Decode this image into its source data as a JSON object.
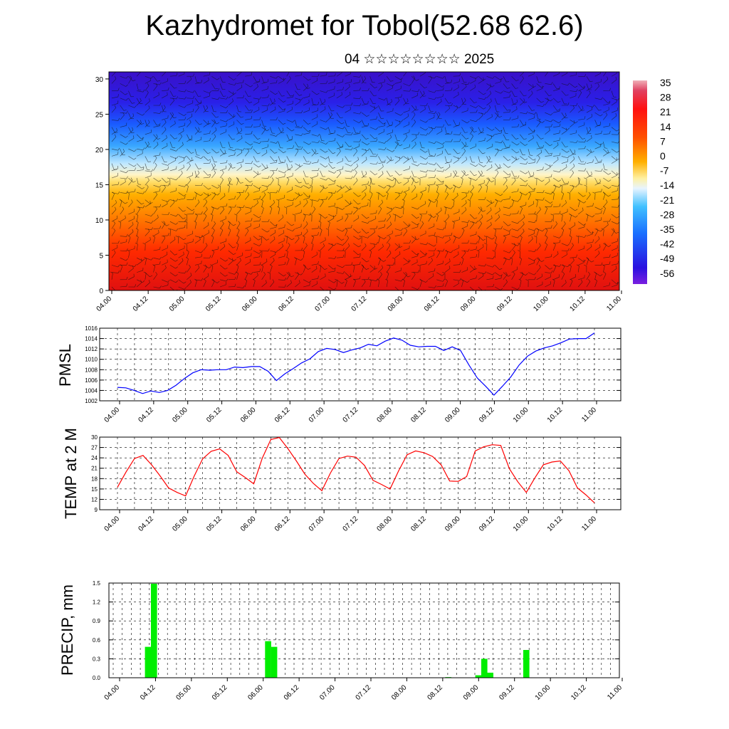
{
  "page": {
    "title": "Kazhydromet for Tobol(52.68 62.6)",
    "subtitle": "04 ☆☆☆☆☆☆☆☆ 2025"
  },
  "time_labels": [
    "04.00",
    "04.12",
    "05.00",
    "05.12",
    "06.00",
    "06.12",
    "07.00",
    "07.12",
    "08.00",
    "08.12",
    "09.00",
    "09.12",
    "10.00",
    "10.12",
    "11.00"
  ],
  "colors": {
    "pmsl_line": "#0000ff",
    "temp_line": "#ff0000",
    "precip_bar": "#00ee00"
  },
  "chart_data": [
    {
      "type": "heatmap",
      "name": "upper-air-section",
      "x_ticks": [
        "04.00",
        "04.12",
        "05.00",
        "05.12",
        "06.00",
        "06.12",
        "07.00",
        "07.12",
        "08.00",
        "08.12",
        "09.00",
        "09.12",
        "10.00",
        "10.12",
        "11.00"
      ],
      "y_ticks": [
        0,
        5,
        10,
        15,
        20,
        25,
        30
      ],
      "ylim": [
        0,
        31
      ],
      "colorbar_labels": [
        "35",
        "28",
        "21",
        "14",
        "7",
        "0",
        "-7",
        "-14",
        "-21",
        "-28",
        "-35",
        "-42",
        "-49",
        "-56"
      ],
      "overlay": "wind barbs"
    },
    {
      "type": "line",
      "name": "pmsl",
      "ylabel": "PMSL",
      "ylim": [
        1002,
        1016
      ],
      "y_ticks": [
        1002,
        1004,
        1006,
        1008,
        1010,
        1012,
        1014,
        1016
      ],
      "x_ticks": [
        "04.00",
        "04.12",
        "05.00",
        "05.12",
        "06.00",
        "06.12",
        "07.00",
        "07.12",
        "08.00",
        "08.12",
        "09.00",
        "09.12",
        "10.00",
        "10.12",
        "11.00"
      ],
      "values": [
        1004.6,
        1004.5,
        1004.0,
        1003.4,
        1003.9,
        1003.6,
        1004.0,
        1005.0,
        1006.3,
        1007.4,
        1008.0,
        1007.9,
        1008.0,
        1008.0,
        1008.5,
        1008.4,
        1008.6,
        1008.6,
        1007.7,
        1005.9,
        1007.2,
        1008.2,
        1009.3,
        1010.1,
        1011.5,
        1012.1,
        1011.9,
        1011.3,
        1011.8,
        1012.2,
        1012.9,
        1012.6,
        1013.5,
        1014.1,
        1013.7,
        1012.7,
        1012.4,
        1012.5,
        1012.5,
        1011.7,
        1012.4,
        1011.7,
        1008.9,
        1006.4,
        1004.8,
        1003.1,
        1004.8,
        1006.6,
        1008.9,
        1010.6,
        1011.6,
        1012.2,
        1012.6,
        1013.2,
        1013.9,
        1014.0,
        1014.0,
        1015.1
      ]
    },
    {
      "type": "line",
      "name": "temp-2m",
      "ylabel": "TEMP at 2 M",
      "ylim": [
        9,
        30
      ],
      "y_ticks": [
        9,
        12,
        15,
        18,
        21,
        24,
        27,
        30
      ],
      "x_ticks": [
        "04.00",
        "04.12",
        "05.00",
        "05.12",
        "06.00",
        "06.12",
        "07.00",
        "07.12",
        "08.00",
        "08.12",
        "09.00",
        "09.12",
        "10.00",
        "10.12",
        "11.00"
      ],
      "values": [
        15.5,
        19.9,
        23.8,
        24.7,
        22.0,
        18.8,
        15.3,
        14.0,
        13.0,
        18.7,
        23.7,
        25.9,
        26.6,
        24.7,
        20.0,
        18.3,
        16.5,
        23.9,
        29.3,
        29.9,
        26.7,
        23.1,
        19.3,
        16.6,
        14.5,
        19.6,
        23.8,
        24.5,
        24.2,
        21.8,
        17.5,
        16.3,
        15.0,
        20.2,
        24.9,
        26.0,
        25.5,
        24.4,
        22.0,
        17.3,
        17.2,
        18.6,
        26.0,
        27.2,
        27.8,
        27.6,
        20.9,
        17.1,
        14.0,
        18.2,
        22.0,
        22.8,
        23.1,
        20.3,
        15.3,
        13.3,
        11.0
      ]
    },
    {
      "type": "bar",
      "name": "precip",
      "ylabel": "PRECIP, mm",
      "ylim": [
        0,
        1.5
      ],
      "y_ticks": [
        "0.0",
        "0.3",
        "0.6",
        "0.9",
        "1.2",
        "1.5"
      ],
      "x_ticks": [
        "04.00",
        "04.12",
        "05.00",
        "05.12",
        "06.00",
        "06.12",
        "07.00",
        "07.12",
        "08.00",
        "08.12",
        "09.00",
        "09.12",
        "10.00",
        "10.12",
        "11.00"
      ],
      "values": [
        0,
        0,
        0,
        0,
        0,
        0,
        0.49,
        1.49,
        0,
        0,
        0,
        0,
        0,
        0,
        0,
        0,
        0,
        0,
        0,
        0,
        0,
        0,
        0,
        0,
        0,
        0,
        0.58,
        0.49,
        0,
        0,
        0,
        0,
        0,
        0,
        0,
        0,
        0,
        0,
        0,
        0,
        0,
        0,
        0,
        0,
        0,
        0,
        0,
        0,
        0,
        0,
        0,
        0,
        0,
        0,
        0,
        0,
        0.01,
        0,
        0,
        0,
        0,
        0.04,
        0.3,
        0.08,
        0,
        0,
        0,
        0,
        0,
        0.44,
        0,
        0,
        0,
        0,
        0,
        0,
        0,
        0,
        0,
        0,
        0,
        0,
        0,
        0,
        0
      ]
    }
  ]
}
